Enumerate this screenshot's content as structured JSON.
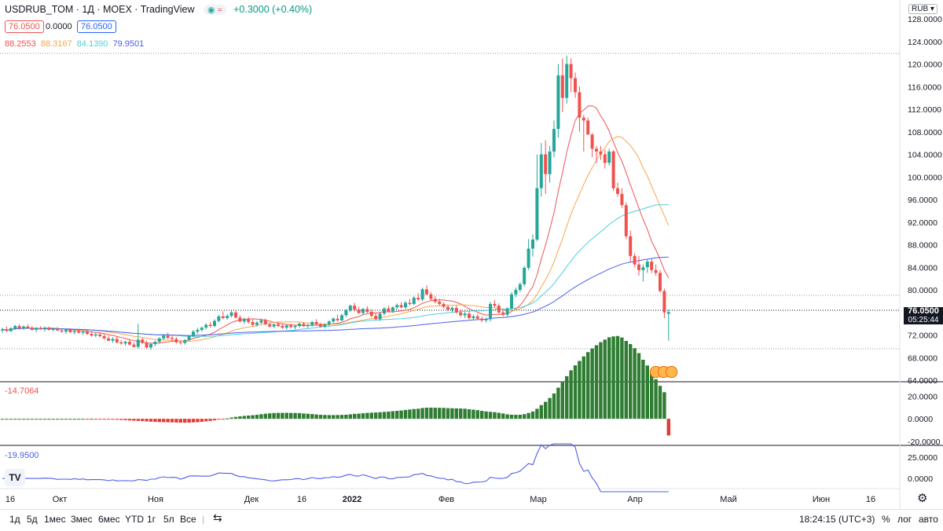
{
  "header": {
    "symbol": "USDRUB_TOM",
    "sep1": "·",
    "interval": "1Д",
    "sep2": "·",
    "exchange": "MOEX",
    "sep3": "·",
    "provider": "TradingView",
    "change": "+0.3000 (+0.40%)",
    "pill_icons": [
      "dot-green",
      "approx-red"
    ],
    "pill_dot": "◉",
    "pill_approx": "≈",
    "sell_box": "76.0500",
    "spread": "0.0000",
    "buy_box": "76.0500",
    "currency_btn": "RUB"
  },
  "ma_values": [
    {
      "value": "88.2553",
      "color": "#ef5350"
    },
    {
      "value": "88.3167",
      "color": "#f7a74f"
    },
    {
      "value": "84.1390",
      "color": "#4dd0e1"
    },
    {
      "value": "79.9501",
      "color": "#4d5ee8"
    }
  ],
  "price_scale": {
    "ticks": [
      "128.0000",
      "124.0000",
      "120.0000",
      "116.0000",
      "112.0000",
      "108.0000",
      "104.0000",
      "100.0000",
      "96.0000",
      "92.0000",
      "88.0000",
      "84.0000",
      "80.0000",
      "76.0000",
      "72.0000",
      "68.0000",
      "64.0000"
    ],
    "last_price": "76.0500",
    "countdown": "05:25:44"
  },
  "osc1": {
    "label": "-14.7064",
    "ticks": [
      "20.0000",
      "0.0000",
      "-20.0000"
    ]
  },
  "osc2": {
    "label": "-19.9500",
    "ticks": [
      "25.0000",
      "0.0000"
    ]
  },
  "time_axis": [
    "16",
    "Окт",
    "Ноя",
    "Дек",
    "16",
    "2022",
    "Фев",
    "Мар",
    "Апр",
    "Май",
    "Июн",
    "16"
  ],
  "toolbar": {
    "timeframes": [
      "1д",
      "5д",
      "1мес",
      "3мес",
      "6мес",
      "YTD",
      "1г",
      "5л",
      "Все"
    ],
    "clock": "18:24:15 (UTC+3)",
    "percent": "%",
    "log": "лог",
    "auto": "авто"
  },
  "colors": {
    "up": "#26a69a",
    "down": "#ef5350",
    "grid_dot": "#9598a1"
  },
  "chart_data": {
    "type": "candlestick",
    "title": "USDRUB_TOM · 1Д · MOEX",
    "ylim": [
      64,
      128
    ],
    "candles_ohlc": [
      [
        72.8,
        73.3,
        72.4,
        73.0
      ],
      [
        73.0,
        73.5,
        72.6,
        72.7
      ],
      [
        72.7,
        73.4,
        72.5,
        73.2
      ],
      [
        73.2,
        73.8,
        72.9,
        73.6
      ],
      [
        73.6,
        73.9,
        73.0,
        73.2
      ],
      [
        73.2,
        73.7,
        72.9,
        73.5
      ],
      [
        73.5,
        73.9,
        73.1,
        73.3
      ],
      [
        73.3,
        73.6,
        72.8,
        72.9
      ],
      [
        72.9,
        73.4,
        72.5,
        73.2
      ],
      [
        73.2,
        73.6,
        72.9,
        73.0
      ],
      [
        73.0,
        73.5,
        72.6,
        73.3
      ],
      [
        73.3,
        73.5,
        72.8,
        72.9
      ],
      [
        72.9,
        73.3,
        72.6,
        73.1
      ],
      [
        73.1,
        73.4,
        72.7,
        72.8
      ],
      [
        72.8,
        73.2,
        72.4,
        72.6
      ],
      [
        72.6,
        73.0,
        72.2,
        72.9
      ],
      [
        72.9,
        73.2,
        72.4,
        72.5
      ],
      [
        72.5,
        72.9,
        72.1,
        72.7
      ],
      [
        72.7,
        73.1,
        72.3,
        72.4
      ],
      [
        72.4,
        72.8,
        72.0,
        72.6
      ],
      [
        72.6,
        72.9,
        72.0,
        72.2
      ],
      [
        72.2,
        72.6,
        71.7,
        71.9
      ],
      [
        71.9,
        72.4,
        71.6,
        72.1
      ],
      [
        72.1,
        72.5,
        71.6,
        71.8
      ],
      [
        71.8,
        72.2,
        71.2,
        71.4
      ],
      [
        71.4,
        71.8,
        70.9,
        71.0
      ],
      [
        71.0,
        71.6,
        70.6,
        71.3
      ],
      [
        71.3,
        71.7,
        70.5,
        70.7
      ],
      [
        70.7,
        71.1,
        70.3,
        70.5
      ],
      [
        70.5,
        71.0,
        70.1,
        70.8
      ],
      [
        70.8,
        71.2,
        70.2,
        70.3
      ],
      [
        70.3,
        70.7,
        69.8,
        69.9
      ],
      [
        69.9,
        74.0,
        69.6,
        71.2
      ],
      [
        71.2,
        71.5,
        70.4,
        70.6
      ],
      [
        70.6,
        71.0,
        69.5,
        69.8
      ],
      [
        69.8,
        70.6,
        69.4,
        70.4
      ],
      [
        70.4,
        71.0,
        70.0,
        70.8
      ],
      [
        70.8,
        71.6,
        70.5,
        71.4
      ],
      [
        71.4,
        72.1,
        71.1,
        71.9
      ],
      [
        71.9,
        72.4,
        71.3,
        71.5
      ],
      [
        71.5,
        72.0,
        71.0,
        71.3
      ],
      [
        71.3,
        71.6,
        70.5,
        70.7
      ],
      [
        70.7,
        71.1,
        70.3,
        70.6
      ],
      [
        70.6,
        71.3,
        70.3,
        71.1
      ],
      [
        71.1,
        72.0,
        70.9,
        71.8
      ],
      [
        71.8,
        72.9,
        71.6,
        72.6
      ],
      [
        72.6,
        73.3,
        72.2,
        72.9
      ],
      [
        72.9,
        73.5,
        72.6,
        73.3
      ],
      [
        73.3,
        74.1,
        73.0,
        73.8
      ],
      [
        73.8,
        74.3,
        73.3,
        73.6
      ],
      [
        73.6,
        74.8,
        73.4,
        74.5
      ],
      [
        74.5,
        75.6,
        74.2,
        75.3
      ],
      [
        75.3,
        76.2,
        74.8,
        75.0
      ],
      [
        75.0,
        75.7,
        74.7,
        75.4
      ],
      [
        75.4,
        76.3,
        75.1,
        76.0
      ],
      [
        76.0,
        76.4,
        74.9,
        75.1
      ],
      [
        75.1,
        75.5,
        74.2,
        74.4
      ],
      [
        74.4,
        75.1,
        74.0,
        74.8
      ],
      [
        74.8,
        75.2,
        74.0,
        74.3
      ],
      [
        74.3,
        74.8,
        73.6,
        73.8
      ],
      [
        73.8,
        74.5,
        73.5,
        74.2
      ],
      [
        74.2,
        74.9,
        73.9,
        74.6
      ],
      [
        74.6,
        74.9,
        73.7,
        73.9
      ],
      [
        73.9,
        74.2,
        73.3,
        73.5
      ],
      [
        73.5,
        74.1,
        73.2,
        73.9
      ],
      [
        73.9,
        74.3,
        73.4,
        73.6
      ],
      [
        73.6,
        74.0,
        73.1,
        73.3
      ],
      [
        73.3,
        73.9,
        73.0,
        73.7
      ],
      [
        73.7,
        74.0,
        73.2,
        73.4
      ],
      [
        73.4,
        73.8,
        73.0,
        73.6
      ],
      [
        73.6,
        74.2,
        73.3,
        74.0
      ],
      [
        74.0,
        74.3,
        73.4,
        73.6
      ],
      [
        73.6,
        74.0,
        73.2,
        73.8
      ],
      [
        73.8,
        74.5,
        73.5,
        74.3
      ],
      [
        74.3,
        74.8,
        73.7,
        73.9
      ],
      [
        73.9,
        74.2,
        73.3,
        73.5
      ],
      [
        73.5,
        74.1,
        73.2,
        73.9
      ],
      [
        73.9,
        74.6,
        73.6,
        74.4
      ],
      [
        74.4,
        75.1,
        74.1,
        74.9
      ],
      [
        74.9,
        75.6,
        74.4,
        74.6
      ],
      [
        74.6,
        75.8,
        74.4,
        75.5
      ],
      [
        75.5,
        76.6,
        75.2,
        76.4
      ],
      [
        76.4,
        77.4,
        76.1,
        77.2
      ],
      [
        77.2,
        77.7,
        76.2,
        76.5
      ],
      [
        76.5,
        77.0,
        75.7,
        75.9
      ],
      [
        75.9,
        76.8,
        75.6,
        76.6
      ],
      [
        76.6,
        77.1,
        75.9,
        76.1
      ],
      [
        76.1,
        76.5,
        75.1,
        75.4
      ],
      [
        75.4,
        75.9,
        74.6,
        74.8
      ],
      [
        74.8,
        76.0,
        74.5,
        75.8
      ],
      [
        75.8,
        76.9,
        75.5,
        76.7
      ],
      [
        76.7,
        77.2,
        76.0,
        76.2
      ],
      [
        76.2,
        77.1,
        75.9,
        76.9
      ],
      [
        76.9,
        77.6,
        76.5,
        77.3
      ],
      [
        77.3,
        77.8,
        76.7,
        76.9
      ],
      [
        76.9,
        78.0,
        76.6,
        77.7
      ],
      [
        77.7,
        78.4,
        77.2,
        77.5
      ],
      [
        77.5,
        78.9,
        77.3,
        78.6
      ],
      [
        78.6,
        79.4,
        78.0,
        78.3
      ],
      [
        78.3,
        80.4,
        78.0,
        80.1
      ],
      [
        80.1,
        80.8,
        79.0,
        79.2
      ],
      [
        79.2,
        79.6,
        78.1,
        78.4
      ],
      [
        78.4,
        78.9,
        77.6,
        77.9
      ],
      [
        77.9,
        78.4,
        77.2,
        77.5
      ],
      [
        77.5,
        77.8,
        76.7,
        77.0
      ],
      [
        77.0,
        77.4,
        76.2,
        76.5
      ],
      [
        76.5,
        77.1,
        76.0,
        76.8
      ],
      [
        76.8,
        77.2,
        75.8,
        76.0
      ],
      [
        76.0,
        76.5,
        75.2,
        75.5
      ],
      [
        75.5,
        76.1,
        75.0,
        75.8
      ],
      [
        75.8,
        76.2,
        74.8,
        75.0
      ],
      [
        75.0,
        75.6,
        74.6,
        75.3
      ],
      [
        75.3,
        75.7,
        74.7,
        74.9
      ],
      [
        74.9,
        75.3,
        74.3,
        74.6
      ],
      [
        74.6,
        75.1,
        74.2,
        74.8
      ],
      [
        74.8,
        77.9,
        74.4,
        77.5
      ],
      [
        77.5,
        78.2,
        76.9,
        77.2
      ],
      [
        77.2,
        77.6,
        75.8,
        76.0
      ],
      [
        76.0,
        76.6,
        75.3,
        75.6
      ],
      [
        75.6,
        76.9,
        75.3,
        76.7
      ],
      [
        76.7,
        79.6,
        76.3,
        79.2
      ],
      [
        79.2,
        80.4,
        78.7,
        80.0
      ],
      [
        80.0,
        81.3,
        79.6,
        81.0
      ],
      [
        81.0,
        84.2,
        80.6,
        83.9
      ],
      [
        83.9,
        89.0,
        83.5,
        87.3
      ],
      [
        87.3,
        89.8,
        85.9,
        88.9
      ],
      [
        88.9,
        104.0,
        88.6,
        98.0
      ],
      [
        98.0,
        106.0,
        96.5,
        104.0
      ],
      [
        104.0,
        106.5,
        97.0,
        100.5
      ],
      [
        100.5,
        105.5,
        99.0,
        104.5
      ],
      [
        104.5,
        110.0,
        103.5,
        108.5
      ],
      [
        108.5,
        120.0,
        107.0,
        118.0
      ],
      [
        118.0,
        121.0,
        111.5,
        114.0
      ],
      [
        114.0,
        121.5,
        113.0,
        120.0
      ],
      [
        120.0,
        121.0,
        115.0,
        117.5
      ],
      [
        117.5,
        118.5,
        114.0,
        115.0
      ],
      [
        115.0,
        116.0,
        108.0,
        110.5
      ],
      [
        110.5,
        111.0,
        104.5,
        110.0
      ],
      [
        110.0,
        110.5,
        107.5,
        107.5
      ],
      [
        107.5,
        107.8,
        103.5,
        105.0
      ],
      [
        105.0,
        105.5,
        102.5,
        104.5
      ],
      [
        104.5,
        105.5,
        103.0,
        104.0
      ],
      [
        104.0,
        104.8,
        101.5,
        102.5
      ],
      [
        102.5,
        105.0,
        102.0,
        104.5
      ],
      [
        104.5,
        104.8,
        97.5,
        98.0
      ],
      [
        98.0,
        99.0,
        96.5,
        97.0
      ],
      [
        97.0,
        98.0,
        94.5,
        95.0
      ],
      [
        95.0,
        95.5,
        89.0,
        89.5
      ],
      [
        89.5,
        90.5,
        85.0,
        86.0
      ],
      [
        86.0,
        86.5,
        84.0,
        84.5
      ],
      [
        84.5,
        86.0,
        82.5,
        83.5
      ],
      [
        83.5,
        84.5,
        81.5,
        84.0
      ],
      [
        84.0,
        85.5,
        83.0,
        85.0
      ],
      [
        85.0,
        85.5,
        83.0,
        83.5
      ],
      [
        83.5,
        84.5,
        82.5,
        83.0
      ],
      [
        83.0,
        83.5,
        79.5,
        79.8
      ],
      [
        79.8,
        80.2,
        75.0,
        76.0
      ],
      [
        75.75,
        76.5,
        71.0,
        76.05
      ]
    ],
    "moving_averages": [
      {
        "name": "MA1",
        "last": 88.2553,
        "color": "#ef5350"
      },
      {
        "name": "MA2",
        "last": 88.3167,
        "color": "#f7a74f"
      },
      {
        "name": "MA3",
        "last": 84.139,
        "color": "#4dd0e1"
      },
      {
        "name": "MA4",
        "last": 79.9501,
        "color": "#4d5ee8"
      }
    ],
    "histogram_ylim": [
      -20,
      30
    ],
    "histogram_last": -14.7064,
    "line2_ylim": [
      -10,
      35
    ],
    "line2_last": -19.95,
    "x_tick_labels": [
      "16",
      "Окт",
      "Ноя",
      "Дек",
      "16",
      "2022",
      "Фев",
      "Мар",
      "Апр",
      "Май",
      "Июн",
      "16"
    ]
  }
}
